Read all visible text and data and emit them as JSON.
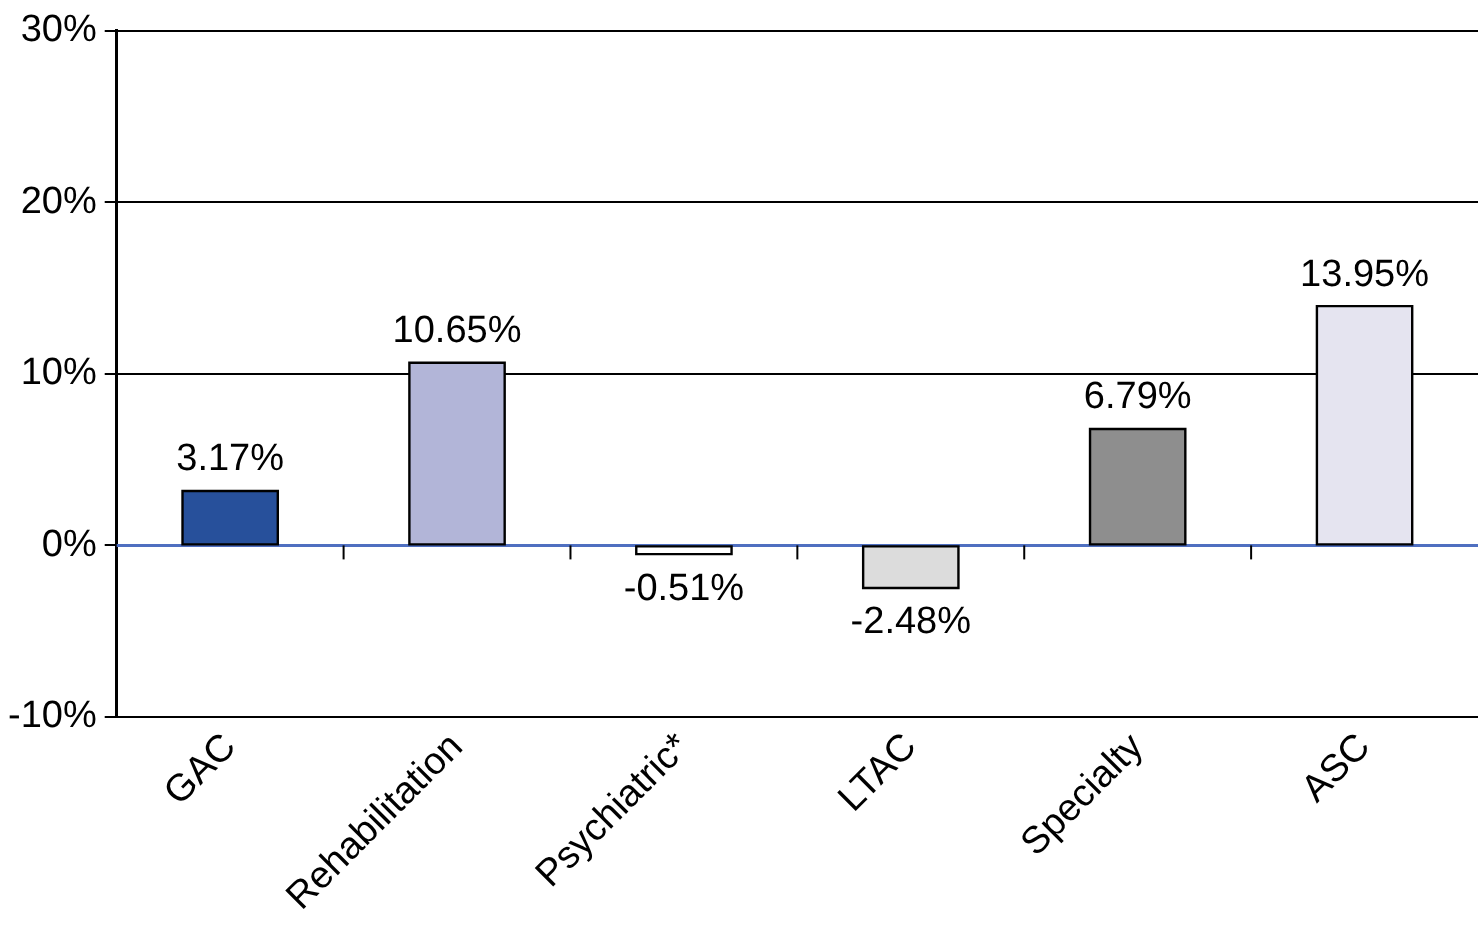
{
  "chart_data": {
    "type": "bar",
    "categories": [
      "GAC",
      "Rehabilitation",
      "Psychiatric*",
      "LTAC",
      "Specialty",
      "ASC"
    ],
    "values": [
      3.17,
      10.65,
      -0.51,
      -2.48,
      6.79,
      13.95
    ],
    "colors": [
      "#27509b",
      "#b2b5d8",
      "#ffffff",
      "#dcdcdc",
      "#8e8e8e",
      "#e5e4f0"
    ],
    "value_labels": [
      "3.17%",
      "10.65%",
      "-0.51%",
      "-2.48%",
      "6.79%",
      "13.95%"
    ],
    "ylim": [
      -10,
      30
    ],
    "yticks": [
      {
        "value": -10,
        "label": "-10%"
      },
      {
        "value": 0,
        "label": "0%"
      },
      {
        "value": 10,
        "label": "10%"
      },
      {
        "value": 20,
        "label": "20%"
      },
      {
        "value": 30,
        "label": "30%"
      }
    ],
    "ref_lines": [
      {
        "axis": "y",
        "value": 0,
        "label": null,
        "color": "#4f6fc0"
      }
    ],
    "grid": "y",
    "legend": false
  }
}
